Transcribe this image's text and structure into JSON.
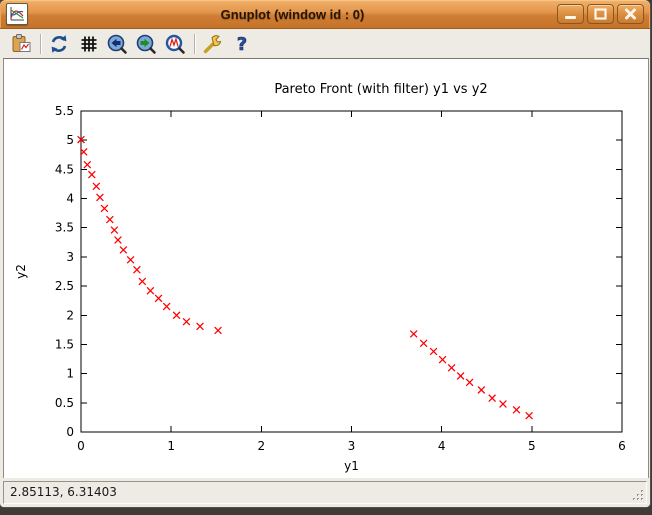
{
  "window": {
    "title": "Gnuplot (window id : 0)",
    "app_icon": "gnuplot-plot-icon",
    "controls": [
      {
        "name": "minimize",
        "icon": "minimize-icon"
      },
      {
        "name": "maximize",
        "icon": "maximize-icon"
      },
      {
        "name": "close",
        "icon": "close-icon"
      }
    ]
  },
  "toolbar": {
    "buttons": [
      {
        "name": "copy-to-clipboard",
        "icon": "clipboard-plot-icon"
      },
      {
        "name": "replot",
        "icon": "refresh-icon"
      },
      {
        "name": "toggle-grid",
        "icon": "grid-icon"
      },
      {
        "name": "previous-zoom",
        "icon": "zoom-previous-icon"
      },
      {
        "name": "next-zoom",
        "icon": "zoom-next-icon"
      },
      {
        "name": "apply-autoscale",
        "icon": "autoscale-plot-icon"
      },
      {
        "name": "configure",
        "icon": "wrench-icon"
      },
      {
        "name": "help",
        "icon": "help-icon"
      }
    ]
  },
  "chart_data": {
    "type": "scatter",
    "title": "Pareto Front (with filter) y1 vs y2",
    "xlabel": "y1",
    "ylabel": "y2",
    "xlim": [
      0,
      6
    ],
    "ylim": [
      0,
      5.5
    ],
    "xticks": [
      0,
      1,
      2,
      3,
      4,
      5,
      6
    ],
    "yticks": [
      0,
      0.5,
      1,
      1.5,
      2,
      2.5,
      3,
      3.5,
      4,
      4.5,
      5,
      5.5
    ],
    "grid": false,
    "legend": "none",
    "series": [
      {
        "name": "pareto-front-points",
        "marker": "x",
        "color": "#ff0000",
        "points": [
          [
            0.0,
            5.01
          ],
          [
            0.03,
            4.8
          ],
          [
            0.07,
            4.58
          ],
          [
            0.12,
            4.41
          ],
          [
            0.17,
            4.21
          ],
          [
            0.21,
            4.02
          ],
          [
            0.26,
            3.83
          ],
          [
            0.32,
            3.64
          ],
          [
            0.37,
            3.46
          ],
          [
            0.41,
            3.29
          ],
          [
            0.47,
            3.12
          ],
          [
            0.55,
            2.95
          ],
          [
            0.62,
            2.78
          ],
          [
            0.68,
            2.58
          ],
          [
            0.77,
            2.42
          ],
          [
            0.86,
            2.29
          ],
          [
            0.95,
            2.15
          ],
          [
            1.06,
            2.0
          ],
          [
            1.17,
            1.89
          ],
          [
            1.32,
            1.81
          ],
          [
            1.52,
            1.74
          ],
          [
            3.69,
            1.68
          ],
          [
            3.8,
            1.52
          ],
          [
            3.91,
            1.38
          ],
          [
            4.01,
            1.24
          ],
          [
            4.11,
            1.1
          ],
          [
            4.21,
            0.96
          ],
          [
            4.31,
            0.85
          ],
          [
            4.44,
            0.72
          ],
          [
            4.56,
            0.58
          ],
          [
            4.68,
            0.48
          ],
          [
            4.83,
            0.38
          ],
          [
            4.97,
            0.28
          ]
        ]
      }
    ]
  },
  "statusbar": {
    "coordinates": "2.85113, 6.31403"
  }
}
